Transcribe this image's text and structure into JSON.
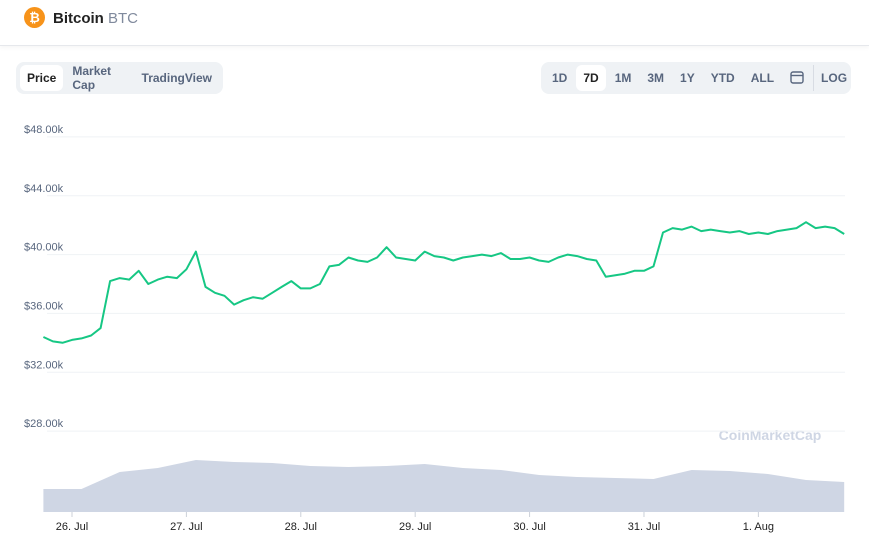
{
  "header": {
    "name": "Bitcoin",
    "symbol": "BTC"
  },
  "tabs": [
    "Price",
    "Market Cap",
    "TradingView"
  ],
  "ranges": [
    "1D",
    "7D",
    "1M",
    "3M",
    "1Y",
    "YTD",
    "ALL"
  ],
  "log_button": "LOG",
  "watermark": "CoinMarketCap",
  "chart_data": {
    "type": "line",
    "categories": [
      null,
      null,
      null,
      "26. Jul",
      null,
      null,
      null,
      null,
      null,
      null,
      null,
      null,
      null,
      null,
      null,
      "27. Jul",
      null,
      null,
      null,
      null,
      null,
      null,
      null,
      null,
      null,
      null,
      null,
      "28. Jul",
      null,
      null,
      null,
      null,
      null,
      null,
      null,
      null,
      null,
      null,
      null,
      "29. Jul",
      null,
      null,
      null,
      null,
      null,
      null,
      null,
      null,
      null,
      null,
      null,
      "30. Jul",
      null,
      null,
      null,
      null,
      null,
      null,
      null,
      null,
      null,
      null,
      null,
      "31. Jul",
      null,
      null,
      null,
      null,
      null,
      null,
      null,
      null,
      null,
      null,
      null,
      "1. Aug",
      null,
      null,
      null,
      null,
      null,
      null,
      null,
      null,
      null
    ],
    "series": [
      {
        "color": "#16c784",
        "values": [
          34400,
          34100,
          34000,
          34200,
          34300,
          34500,
          35000,
          38200,
          38400,
          38300,
          38900,
          38000,
          38300,
          38500,
          38400,
          39000,
          40200,
          37800,
          37400,
          37200,
          36600,
          36900,
          37100,
          37000,
          37400,
          37800,
          38200,
          37700,
          37700,
          38000,
          39200,
          39300,
          39800,
          39600,
          39500,
          39800,
          40500,
          39800,
          39700,
          39600,
          40200,
          39900,
          39800,
          39600,
          39800,
          39900,
          40000,
          39900,
          40100,
          39700,
          39700,
          39800,
          39600,
          39500,
          39800,
          40000,
          39900,
          39700,
          39600,
          38500,
          38600,
          38700,
          38900,
          38900,
          39200,
          41500,
          41800,
          41700,
          41900,
          41600,
          41700,
          41600,
          41500,
          41600,
          41400,
          41500,
          41400,
          41600,
          41700,
          41800,
          42200,
          41800,
          41900,
          41800,
          41400
        ]
      }
    ],
    "volume": {
      "color": "#cfd6e4",
      "values": [
        23,
        23,
        40,
        44,
        52,
        50,
        49,
        46,
        45,
        46,
        48,
        44,
        42,
        37,
        35,
        34,
        33,
        42,
        41,
        38,
        32,
        30
      ]
    },
    "ylim": [
      22500,
      49150
    ],
    "yticks": [
      {
        "value": 28000,
        "label": "$28.00k"
      },
      {
        "value": 32000,
        "label": "$32.00k"
      },
      {
        "value": 36000,
        "label": "$36.00k"
      },
      {
        "value": 40000,
        "label": "$40.00k"
      },
      {
        "value": 44000,
        "label": "$44.00k"
      },
      {
        "value": 48000,
        "label": "$48.00k"
      }
    ],
    "grid": true
  }
}
